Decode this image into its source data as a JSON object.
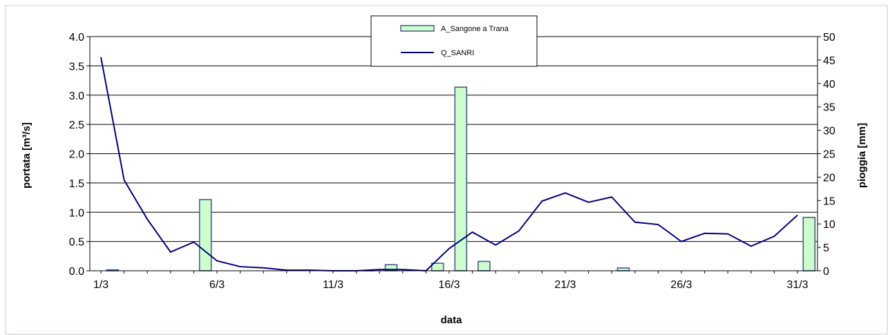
{
  "chart_data": {
    "type": "bar+line",
    "x_tick_labels": [
      "1/3",
      "6/3",
      "11/3",
      "16/3",
      "21/3",
      "26/3",
      "31/3"
    ],
    "xlabel": "data",
    "ylabel_left": "portata [m³/s]",
    "ylabel_right": "pioggia [mm]",
    "ylim_left": [
      0,
      4
    ],
    "ylim_right": [
      0,
      50
    ],
    "y_ticks_left": [
      "0.0",
      "0.5",
      "1.0",
      "1.5",
      "2.0",
      "2.5",
      "3.0",
      "3.5",
      "4.0"
    ],
    "y_ticks_right": [
      "0",
      "5",
      "10",
      "15",
      "20",
      "25",
      "30",
      "35",
      "40",
      "45",
      "50"
    ],
    "grid": true,
    "legend_position": "top-center",
    "days": [
      1,
      2,
      3,
      4,
      5,
      6,
      7,
      8,
      9,
      10,
      11,
      12,
      13,
      14,
      15,
      16,
      17,
      18,
      19,
      20,
      21,
      22,
      23,
      24,
      25,
      26,
      27,
      28,
      29,
      30,
      31
    ],
    "series": [
      {
        "name": "A_Sangone a Trana",
        "kind": "bar",
        "axis": "right",
        "color": "#ccffcc",
        "values": [
          0.2,
          0,
          0,
          0,
          15.2,
          0,
          0,
          0,
          0,
          0,
          0,
          0.1,
          1.3,
          0,
          1.6,
          39.2,
          2,
          0,
          0,
          0,
          0,
          0,
          0.6,
          0,
          0,
          0,
          0,
          0,
          0,
          0,
          11.4
        ]
      },
      {
        "name": "Q_SANRI",
        "kind": "line",
        "axis": "left",
        "color": "#000080",
        "values": [
          3.65,
          1.55,
          0.88,
          0.32,
          0.49,
          0.17,
          0.07,
          0.05,
          0.01,
          0.01,
          0.0,
          0.0,
          0.02,
          0.02,
          0.0,
          0.38,
          0.66,
          0.44,
          0.68,
          1.19,
          1.33,
          1.17,
          1.26,
          0.83,
          0.79,
          0.5,
          0.64,
          0.63,
          0.42,
          0.59,
          0.95
        ]
      }
    ]
  }
}
